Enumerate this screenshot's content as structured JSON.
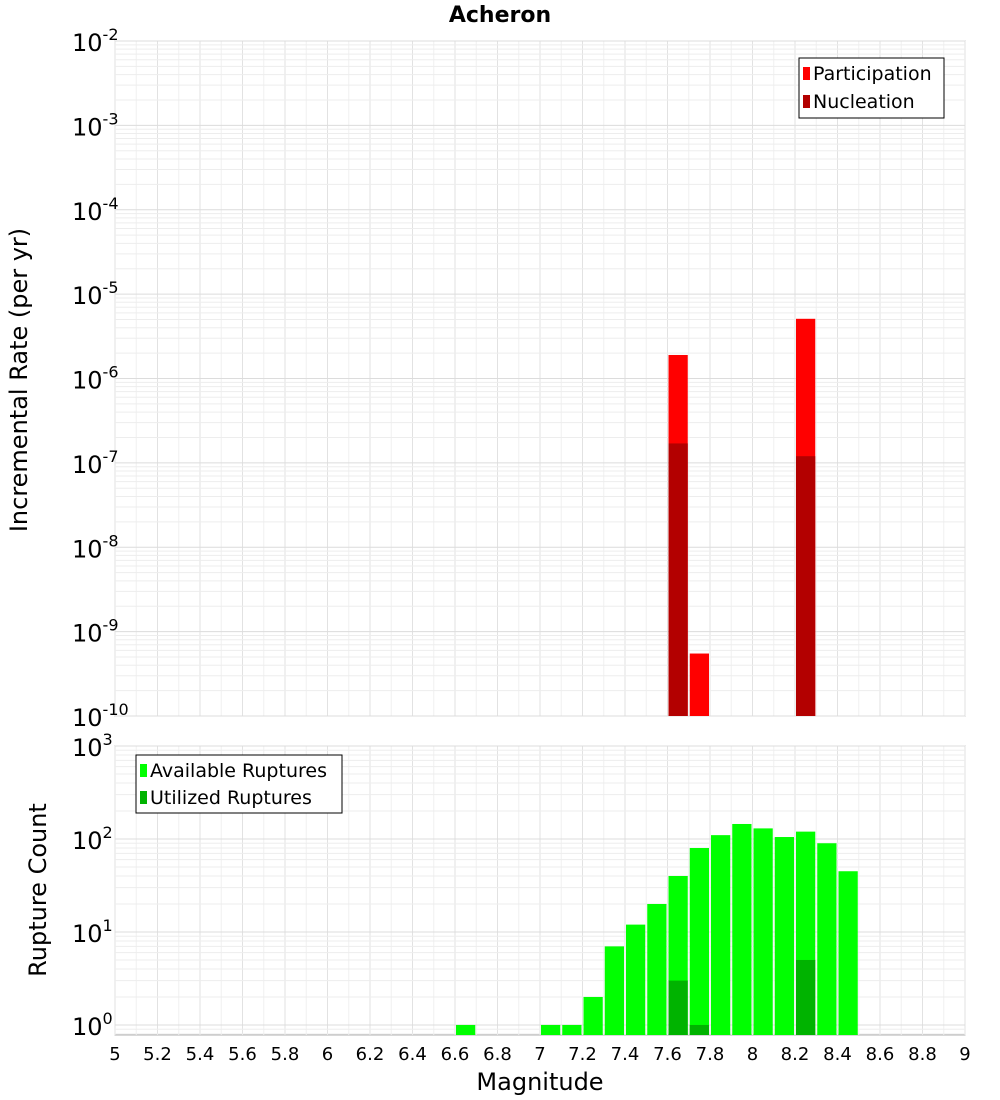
{
  "chart_data": [
    {
      "type": "bar",
      "title": "Acheron",
      "ylabel": "Incremental Rate (per yr)",
      "yscale": "log",
      "ylim": [
        1e-10,
        0.01
      ],
      "xlim": [
        5,
        9
      ],
      "bar_width": 0.1,
      "grid": true,
      "legend_position": "top-right",
      "series": [
        {
          "name": "Participation",
          "color": "#ff0000",
          "x": [
            7.65,
            7.75,
            8.25
          ],
          "values": [
            1.9e-06,
            5.5e-10,
            5.1e-06
          ]
        },
        {
          "name": "Nucleation",
          "color": "#b30000",
          "x": [
            7.65,
            8.25
          ],
          "values": [
            1.7e-07,
            1.2e-07
          ]
        }
      ]
    },
    {
      "type": "bar",
      "ylabel": "Rupture Count",
      "xlabel": "Magnitude",
      "yscale": "log",
      "ylim": [
        0.78,
        1000
      ],
      "xlim": [
        5,
        9
      ],
      "bar_width": 0.1,
      "grid": true,
      "legend_position": "top-left",
      "series": [
        {
          "name": "Available Ruptures",
          "color": "#00ff00",
          "x": [
            6.65,
            7.05,
            7.15,
            7.25,
            7.35,
            7.45,
            7.55,
            7.65,
            7.75,
            7.85,
            7.95,
            8.05,
            8.15,
            8.25,
            8.35,
            8.45
          ],
          "values": [
            1,
            1,
            1,
            2,
            7,
            12,
            20,
            40,
            80,
            110,
            145,
            130,
            105,
            120,
            90,
            45
          ]
        },
        {
          "name": "Utilized Ruptures",
          "color": "#00b300",
          "x": [
            7.65,
            7.75,
            8.25
          ],
          "values": [
            3,
            1,
            5
          ]
        }
      ]
    }
  ],
  "x_ticks": [
    "5",
    "5.2",
    "5.4",
    "5.6",
    "5.8",
    "6",
    "6.2",
    "6.4",
    "6.6",
    "6.8",
    "7",
    "7.2",
    "7.4",
    "7.6",
    "7.8",
    "8",
    "8.2",
    "8.4",
    "8.6",
    "8.8",
    "9"
  ],
  "top_y_ticks": [
    {
      "base": "10",
      "exp": "-2"
    },
    {
      "base": "10",
      "exp": "-3"
    },
    {
      "base": "10",
      "exp": "-4"
    },
    {
      "base": "10",
      "exp": "-5"
    },
    {
      "base": "10",
      "exp": "-6"
    },
    {
      "base": "10",
      "exp": "-7"
    },
    {
      "base": "10",
      "exp": "-8"
    },
    {
      "base": "10",
      "exp": "-9"
    },
    {
      "base": "10",
      "exp": "-10"
    }
  ],
  "bottom_y_ticks": [
    {
      "base": "10",
      "exp": "3"
    },
    {
      "base": "10",
      "exp": "2"
    },
    {
      "base": "10",
      "exp": "1"
    },
    {
      "base": "10",
      "exp": "0"
    }
  ]
}
